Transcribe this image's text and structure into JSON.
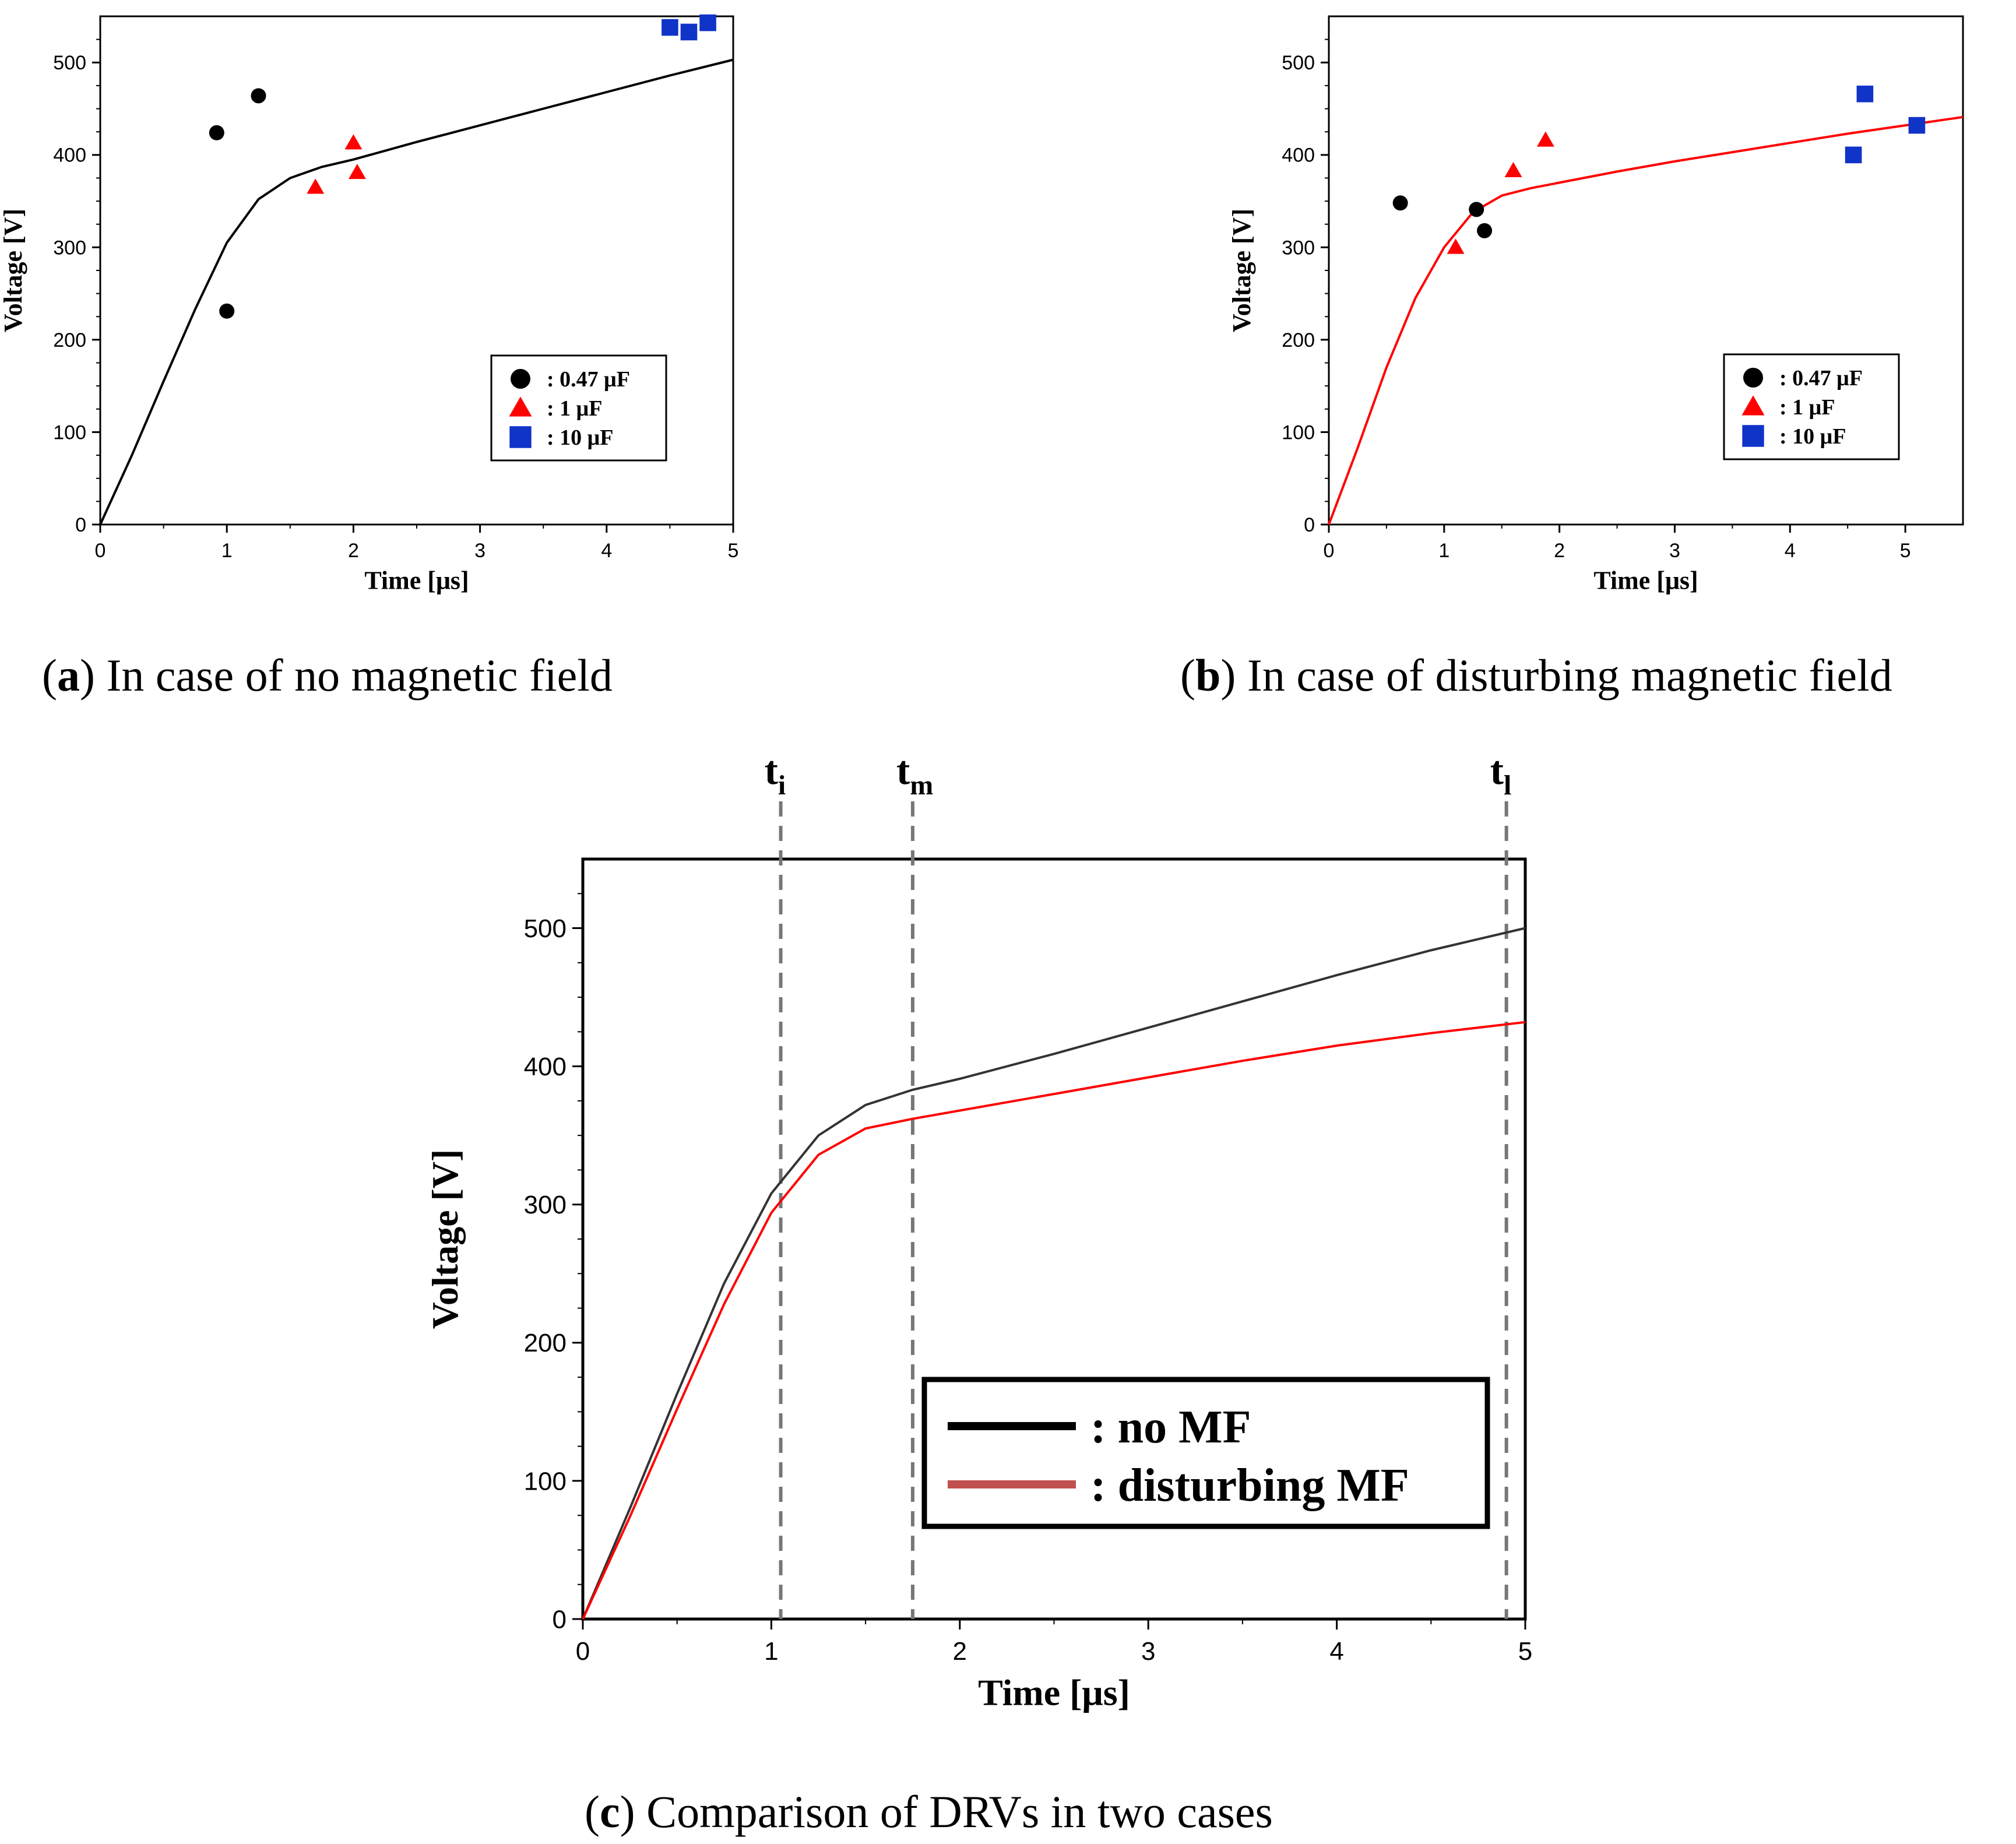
{
  "colors": {
    "black_series": "#000000",
    "red_series": "#ff0000",
    "blue_series": "#1033c8",
    "red_line_c": "#c0504d"
  },
  "chart_data": [
    {
      "type": "scatter",
      "caption_letter": "a",
      "caption_text": " In case of no magnetic field",
      "xlabel": "Time [μs]",
      "ylabel": "Voltage [V]",
      "xlim": [
        0,
        5
      ],
      "ylim": [
        0,
        550
      ],
      "xticks": [
        "0",
        "1",
        "2",
        "3",
        "4",
        "5"
      ],
      "yticks": [
        "0",
        "100",
        "200",
        "300",
        "400",
        "500"
      ],
      "legend": [
        ": 0.47 μF",
        ": 1 μF",
        ": 10 μF"
      ],
      "legend_position": "lower-right",
      "series": [
        {
          "marker": "circle",
          "color": "black",
          "points": [
            [
              0.92,
              424
            ],
            [
              1.0,
              231
            ],
            [
              1.25,
              464
            ]
          ]
        },
        {
          "marker": "triangle",
          "color": "red",
          "points": [
            [
              1.7,
              365
            ],
            [
              2.0,
              413
            ],
            [
              2.03,
              381
            ]
          ]
        },
        {
          "marker": "square",
          "color": "blue",
          "points": [
            [
              4.5,
              538
            ],
            [
              4.65,
              533
            ],
            [
              4.8,
              543
            ]
          ]
        }
      ],
      "fit_line": [
        [
          0,
          0
        ],
        [
          0.25,
          75
        ],
        [
          0.5,
          155
        ],
        [
          0.75,
          233
        ],
        [
          1.0,
          305
        ],
        [
          1.25,
          352
        ],
        [
          1.5,
          375
        ],
        [
          1.75,
          387
        ],
        [
          2.0,
          395
        ],
        [
          2.5,
          414
        ],
        [
          3.0,
          432
        ],
        [
          3.5,
          450
        ],
        [
          4.0,
          468
        ],
        [
          4.5,
          486
        ],
        [
          5.0,
          503
        ]
      ]
    },
    {
      "type": "scatter",
      "caption_letter": "b",
      "caption_text": " In case of disturbing magnetic field",
      "xlabel": "Time [μs]",
      "ylabel": "Voltage [V]",
      "xlim": [
        0,
        5.5
      ],
      "ylim": [
        0,
        550
      ],
      "xticks": [
        "0",
        "1",
        "2",
        "3",
        "4",
        "5"
      ],
      "yticks": [
        "0",
        "100",
        "200",
        "300",
        "400",
        "500"
      ],
      "legend": [
        ": 0.47 μF",
        ": 1 μF",
        ": 10 μF"
      ],
      "legend_position": "lower-right",
      "series": [
        {
          "marker": "circle",
          "color": "black",
          "points": [
            [
              0.62,
              348
            ],
            [
              1.28,
              341
            ],
            [
              1.35,
              318
            ]
          ]
        },
        {
          "marker": "triangle",
          "color": "red",
          "points": [
            [
              1.1,
              300
            ],
            [
              1.6,
              383
            ],
            [
              1.88,
              416
            ]
          ]
        },
        {
          "marker": "square",
          "color": "blue",
          "points": [
            [
              4.55,
              400
            ],
            [
              4.65,
              466
            ],
            [
              5.1,
              432
            ]
          ]
        }
      ],
      "fit_line": [
        [
          0,
          0
        ],
        [
          0.25,
          83
        ],
        [
          0.5,
          170
        ],
        [
          0.75,
          245
        ],
        [
          1.0,
          300
        ],
        [
          1.25,
          338
        ],
        [
          1.5,
          356
        ],
        [
          1.75,
          364
        ],
        [
          2.0,
          370
        ],
        [
          2.5,
          382
        ],
        [
          3.0,
          393
        ],
        [
          3.5,
          403
        ],
        [
          4.0,
          413
        ],
        [
          4.5,
          423
        ],
        [
          5.0,
          432
        ],
        [
          5.5,
          441
        ]
      ]
    },
    {
      "type": "line",
      "caption_letter": "c",
      "caption_text": " Comparison of DRVs in two cases",
      "xlabel": "Time [μs]",
      "ylabel": "Voltage [V]",
      "xlim": [
        0,
        5
      ],
      "ylim": [
        0,
        550
      ],
      "xticks": [
        "0",
        "1",
        "2",
        "3",
        "4",
        "5"
      ],
      "yticks": [
        "0",
        "100",
        "200",
        "300",
        "400",
        "500"
      ],
      "legend_position": "lower-right",
      "markers": [
        {
          "base": "t",
          "sub": "i",
          "x": 1.05
        },
        {
          "base": "t",
          "sub": "m",
          "x": 1.75
        },
        {
          "base": "t",
          "sub": "l",
          "x": 4.9
        }
      ],
      "series": [
        {
          "name": ": no MF",
          "color": "black",
          "values": [
            [
              0,
              0
            ],
            [
              0.25,
              80
            ],
            [
              0.5,
              163
            ],
            [
              0.75,
              243
            ],
            [
              1.0,
              308
            ],
            [
              1.25,
              350
            ],
            [
              1.5,
              372
            ],
            [
              1.75,
              383
            ],
            [
              2.0,
              391
            ],
            [
              2.5,
              409
            ],
            [
              3.0,
              428
            ],
            [
              3.5,
              447
            ],
            [
              4.0,
              466
            ],
            [
              4.5,
              484
            ],
            [
              5.0,
              500
            ]
          ]
        },
        {
          "name": ": disturbing MF",
          "color": "red",
          "values": [
            [
              0,
              0
            ],
            [
              0.25,
              74
            ],
            [
              0.5,
              152
            ],
            [
              0.75,
              228
            ],
            [
              1.0,
              294
            ],
            [
              1.25,
              336
            ],
            [
              1.5,
              355
            ],
            [
              1.75,
              362
            ],
            [
              2.0,
              368
            ],
            [
              2.5,
              380
            ],
            [
              3.0,
              392
            ],
            [
              3.5,
              404
            ],
            [
              4.0,
              415
            ],
            [
              4.5,
              424
            ],
            [
              5.0,
              432
            ]
          ]
        }
      ]
    }
  ]
}
